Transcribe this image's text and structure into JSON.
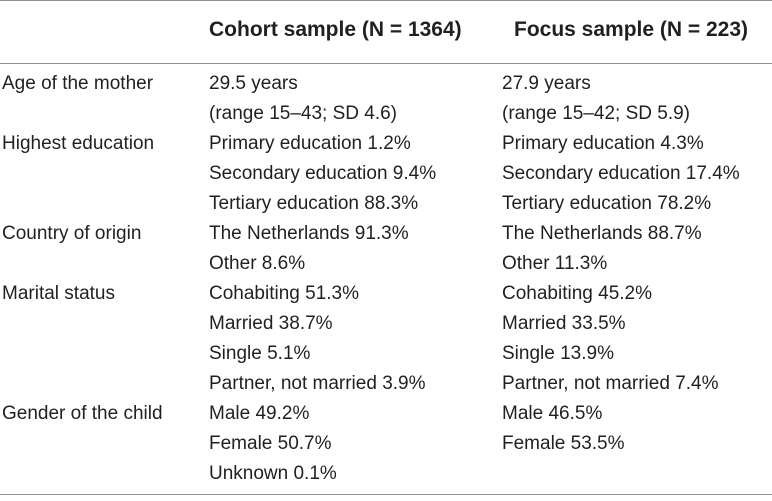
{
  "table": {
    "headers": {
      "cohort": "Cohort sample (N = 1364)",
      "focus": "Focus sample (N = 223)"
    },
    "rows": [
      {
        "label": "Age of the mother",
        "cohort": [
          "29.5 years",
          "(range 15–43; SD 4.6)"
        ],
        "focus": [
          "27.9 years",
          "(range 15–42; SD 5.9)"
        ]
      },
      {
        "label": "Highest education",
        "cohort": [
          "Primary education 1.2%",
          "Secondary education 9.4%",
          "Tertiary education 88.3%"
        ],
        "focus": [
          "Primary education 4.3%",
          "Secondary education 17.4%",
          "Tertiary education 78.2%"
        ]
      },
      {
        "label": "Country of origin",
        "cohort": [
          "The Netherlands 91.3%",
          "Other 8.6%"
        ],
        "focus": [
          "The Netherlands 88.7%",
          "Other 11.3%"
        ]
      },
      {
        "label": "Marital status",
        "cohort": [
          "Cohabiting 51.3%",
          "Married 38.7%",
          "Single 5.1%",
          "Partner, not married 3.9%"
        ],
        "focus": [
          "Cohabiting 45.2%",
          "Married 33.5%",
          "Single 13.9%",
          "Partner, not married 7.4%"
        ]
      },
      {
        "label": "Gender of the child",
        "cohort": [
          "Male 49.2%",
          "Female 50.7%",
          "Unknown 0.1%"
        ],
        "focus": [
          "Male 46.5%",
          "Female 53.5%"
        ]
      }
    ]
  }
}
